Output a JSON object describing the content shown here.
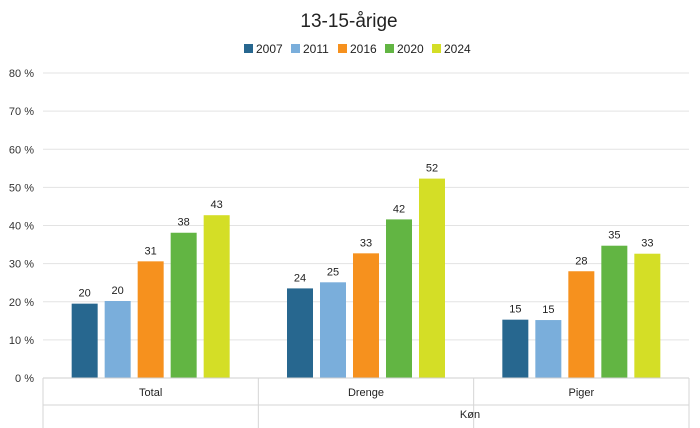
{
  "chart_data": {
    "type": "bar",
    "title": "13-15-årige",
    "xlabel": "Køn",
    "ylabel": "",
    "categories": [
      "Total",
      "Drenge",
      "Piger"
    ],
    "ylim": [
      0,
      80
    ],
    "yticks": [
      0,
      10,
      20,
      30,
      40,
      50,
      60,
      70,
      80
    ],
    "y_tick_suffix": " %",
    "grid": true,
    "legend_position": "top",
    "series": [
      {
        "name": "2007",
        "color": "#27678f",
        "values": [
          19.5,
          23.5,
          15.3
        ],
        "labels": [
          "20",
          "24",
          "15"
        ]
      },
      {
        "name": "2011",
        "color": "#7aaedb",
        "values": [
          20.2,
          25.1,
          15.2
        ],
        "labels": [
          "20",
          "25",
          "15"
        ]
      },
      {
        "name": "2016",
        "color": "#f6911e",
        "values": [
          30.6,
          32.7,
          28.0
        ],
        "labels": [
          "31",
          "33",
          "28"
        ]
      },
      {
        "name": "2020",
        "color": "#62b543",
        "values": [
          38.1,
          41.6,
          34.7
        ],
        "labels": [
          "38",
          "42",
          "35"
        ]
      },
      {
        "name": "2024",
        "color": "#d4de26",
        "values": [
          42.7,
          52.3,
          32.6
        ],
        "labels": [
          "43",
          "52",
          "33"
        ]
      }
    ]
  }
}
